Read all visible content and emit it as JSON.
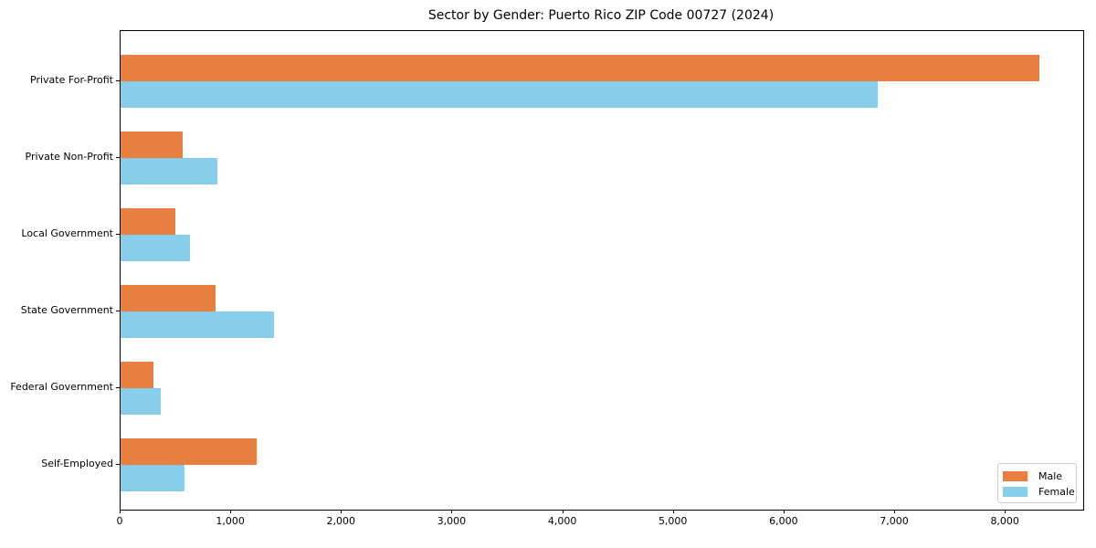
{
  "chart_data": {
    "type": "bar",
    "orientation": "horizontal",
    "title": "Sector by Gender: Puerto Rico ZIP Code 00727 (2024)",
    "categories": [
      "Private For-Profit",
      "Private Non-Profit",
      "Local Government",
      "State Government",
      "Federal Government",
      "Self-Employed"
    ],
    "series": [
      {
        "name": "Male",
        "color": "#e87e3f",
        "values": [
          8300,
          560,
          495,
          860,
          300,
          1230
        ]
      },
      {
        "name": "Female",
        "color": "#87ceeb",
        "values": [
          6840,
          875,
          630,
          1390,
          365,
          580
        ]
      }
    ],
    "xlabel": "",
    "ylabel": "",
    "xlim": [
      0,
      8700
    ],
    "xticks": [
      0,
      1000,
      2000,
      3000,
      4000,
      5000,
      6000,
      7000,
      8000
    ],
    "xtick_labels": [
      "0",
      "1,000",
      "2,000",
      "3,000",
      "4,000",
      "5,000",
      "6,000",
      "7,000",
      "8,000"
    ],
    "legend": {
      "position": "lower-right",
      "entries": [
        "Male",
        "Female"
      ]
    },
    "grid": false,
    "colors": {
      "male": "#e87e3f",
      "female": "#87ceeb",
      "spine": "#000000",
      "legend_border": "#cccccc"
    }
  }
}
